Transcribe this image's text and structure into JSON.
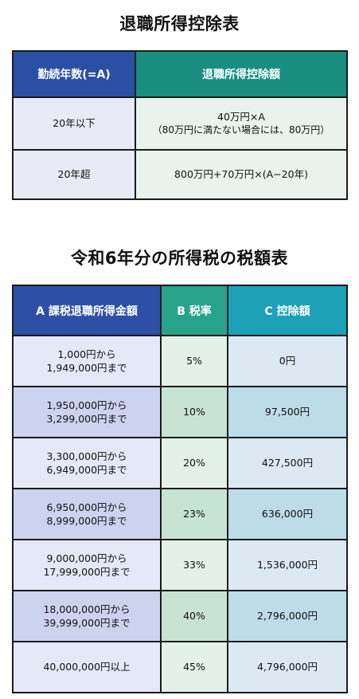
{
  "table1": {
    "title": "退職所得控除表",
    "headers": [
      "勤続年数(=A)",
      "退職所得控除額"
    ],
    "rows": [
      {
        "years": "20年以下",
        "deduction_line1": "40万円×A",
        "deduction_line2": "（80万円に満たない場合には、80万円）"
      },
      {
        "years": "20年超",
        "deduction_line1": "800万円+70万円×(A−20年)",
        "deduction_line2": ""
      }
    ]
  },
  "table2": {
    "title": "令和6年分の所得税の税額表",
    "headers": [
      "A 課税退職所得金額",
      "B 税率",
      "C 控除額"
    ],
    "rows": [
      {
        "range_line1": "1,000円から",
        "range_line2": "1,949,000円まで",
        "rate": "5%",
        "deduction": "0円"
      },
      {
        "range_line1": "1,950,000円から",
        "range_line2": "3,299,000円まで",
        "rate": "10%",
        "deduction": "97,500円"
      },
      {
        "range_line1": "3,300,000円から",
        "range_line2": "6,949,000円まで",
        "rate": "20%",
        "deduction": "427,500円"
      },
      {
        "range_line1": "6,950,000円から",
        "range_line2": "8,999,000円まで",
        "rate": "23%",
        "deduction": "636,000円"
      },
      {
        "range_line1": "9,000,000円から",
        "range_line2": "17,999,000円まで",
        "rate": "33%",
        "deduction": "1,536,000円"
      },
      {
        "range_line1": "18,000,000円から",
        "range_line2": "39,999,000円まで",
        "rate": "40%",
        "deduction": "2,796,000円"
      },
      {
        "range_line1": "40,000,000円以上",
        "range_line2": "",
        "rate": "45%",
        "deduction": "4,796,000円"
      }
    ]
  },
  "colors": {
    "header_blue": "#2b4fa3",
    "header_teal": "#1b8e82",
    "header_green": "#27a38a",
    "header_cyan": "#1ca0b8"
  }
}
